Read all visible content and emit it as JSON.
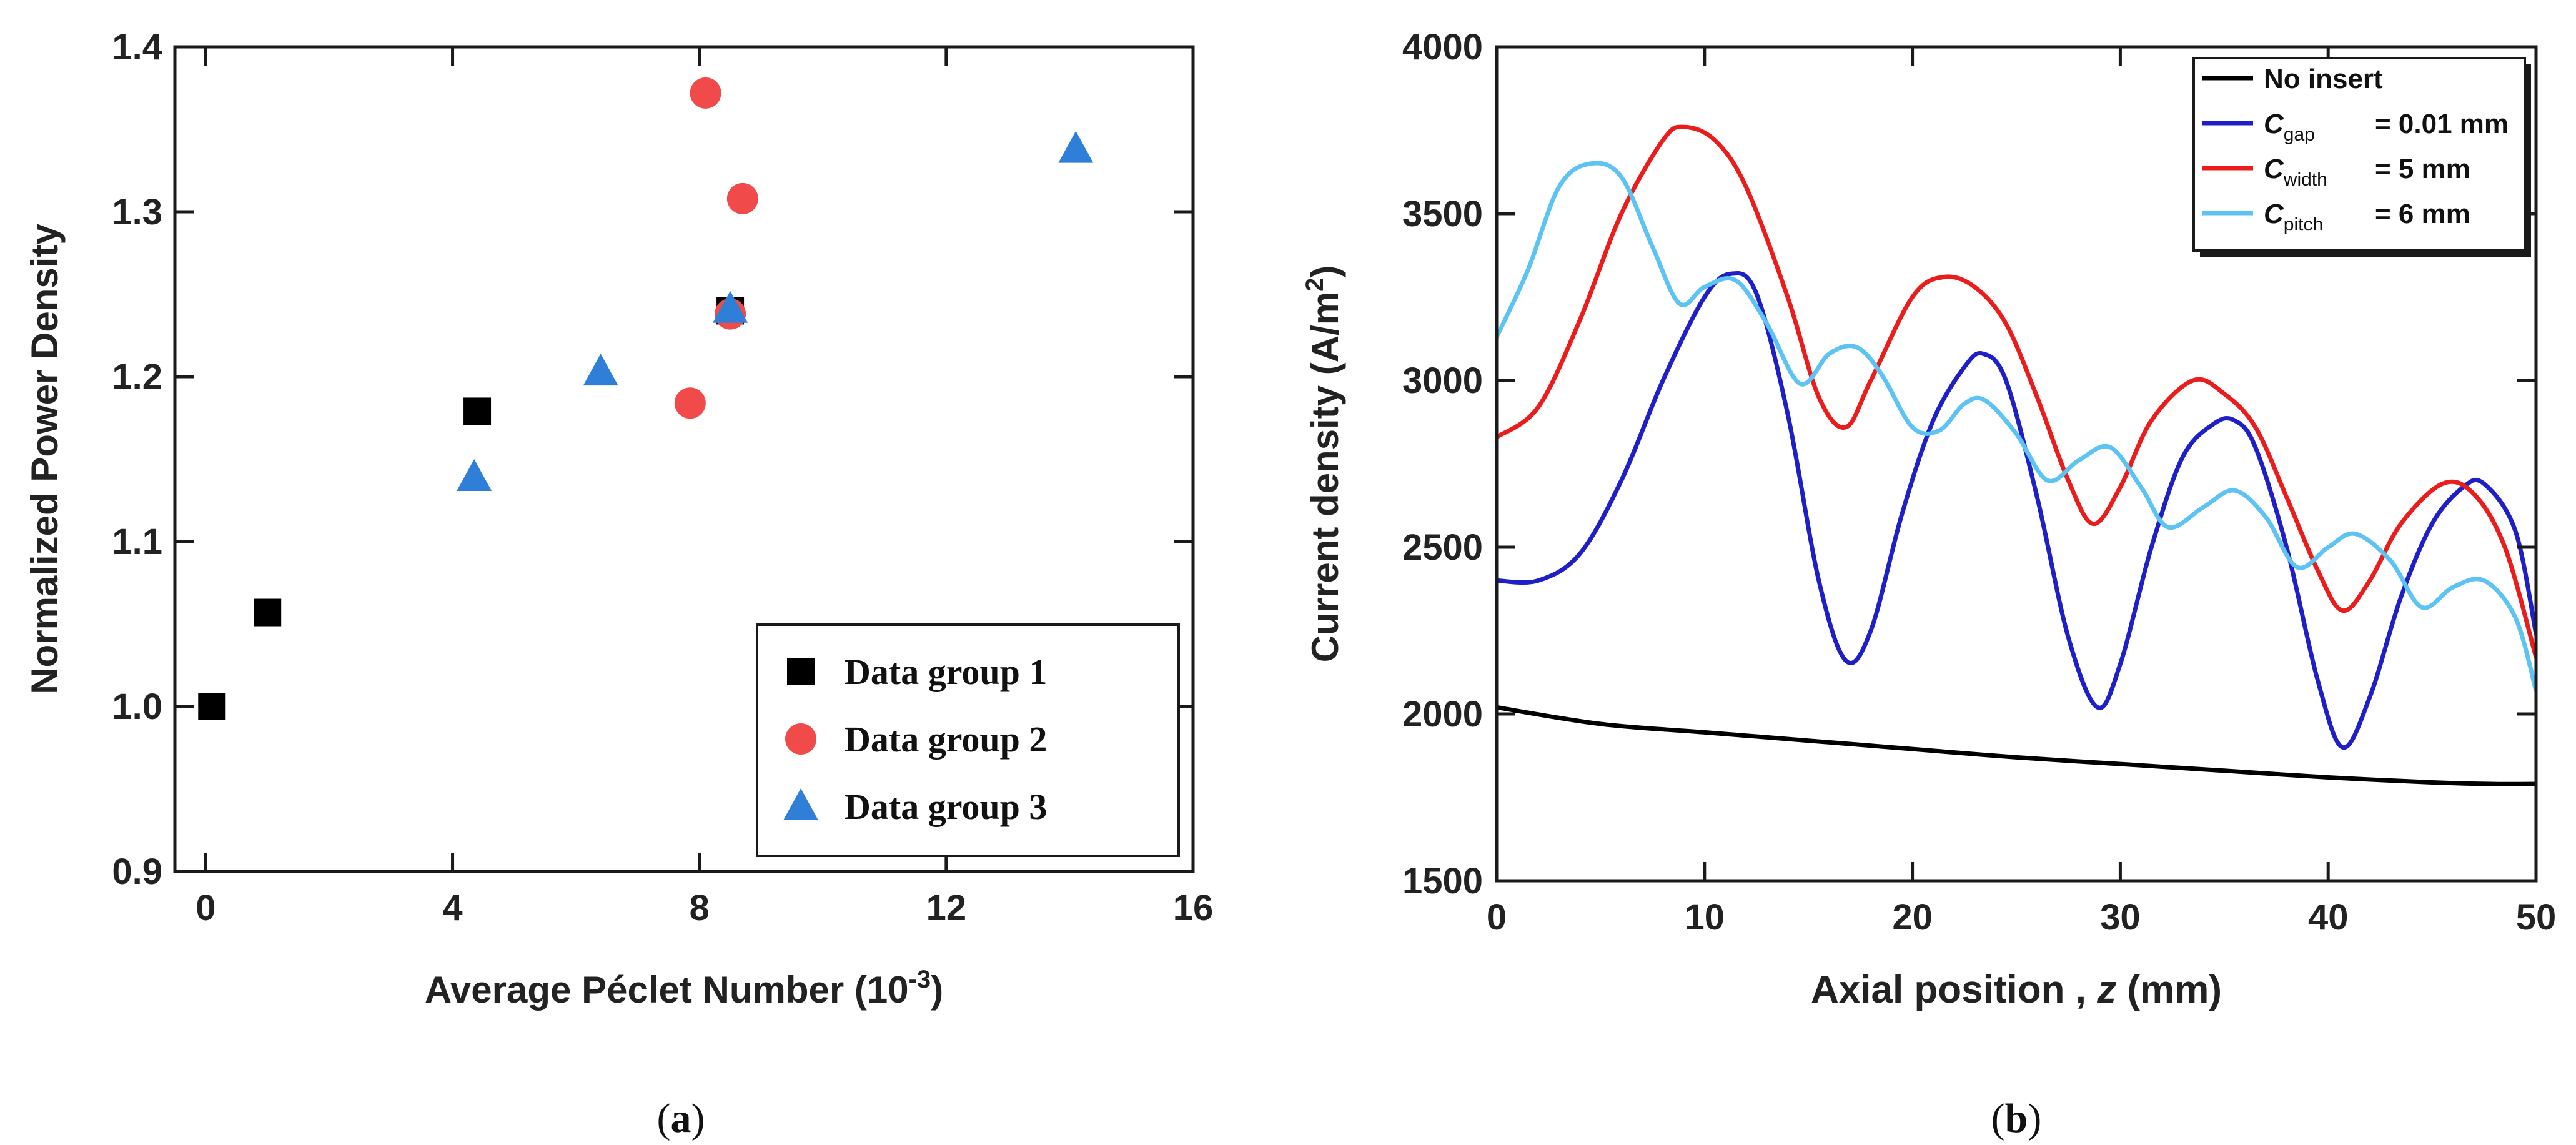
{
  "chart_data": [
    {
      "type": "scatter",
      "panel_label": "(a)",
      "panel_letter": "a",
      "xlabel": "Average Péclet Number (10",
      "xlabel_exponent": "-3",
      "xlabel_close": ")",
      "ylabel": "Normalized Power Density",
      "xlim": [
        -0.5,
        16
      ],
      "ylim": [
        0.9,
        1.4
      ],
      "xticks": [
        0,
        4,
        8,
        12,
        16
      ],
      "yticks": [
        0.9,
        1.0,
        1.1,
        1.2,
        1.3,
        1.4
      ],
      "xtick_labels": [
        "0",
        "4",
        "8",
        "12",
        "16"
      ],
      "ytick_labels": [
        "0.9",
        "1.0",
        "1.1",
        "1.2",
        "1.3",
        "1.4"
      ],
      "legend_position": "bottom-right",
      "series": [
        {
          "name": "Data group 1",
          "marker": "square",
          "color": "#000000",
          "x": [
            0.1,
            1.0,
            4.4,
            8.5
          ],
          "y": [
            1.0,
            1.057,
            1.179,
            1.24
          ]
        },
        {
          "name": "Data group 2",
          "marker": "circle",
          "color": "#f04a4a",
          "x": [
            8.1,
            8.7,
            7.85,
            8.5
          ],
          "y": [
            1.372,
            1.308,
            1.184,
            1.238
          ]
        },
        {
          "name": "Data group 3",
          "marker": "triangle",
          "color": "#2f7fd8",
          "x": [
            14.1,
            8.5,
            6.4,
            4.35
          ],
          "y": [
            1.338,
            1.241,
            1.203,
            1.139
          ]
        }
      ]
    },
    {
      "type": "line",
      "panel_label": "(b)",
      "panel_letter": "b",
      "xlabel": "Axial position , ",
      "xlabel_var": "z",
      "xlabel_unit": " (mm)",
      "ylabel": "Current density (A/m",
      "ylabel_exponent": "2",
      "ylabel_close": ")",
      "xlim": [
        0,
        50
      ],
      "ylim": [
        1500,
        4000
      ],
      "xticks": [
        0,
        10,
        20,
        30,
        40,
        50
      ],
      "yticks": [
        1500,
        2000,
        2500,
        3000,
        3500,
        4000
      ],
      "xtick_labels": [
        "0",
        "10",
        "20",
        "30",
        "40",
        "50"
      ],
      "ytick_labels": [
        "1500",
        "2000",
        "2500",
        "3000",
        "3500",
        "4000"
      ],
      "legend_position": "top-right",
      "series": [
        {
          "name": "No insert",
          "legend_main": "No insert",
          "legend_sub": "",
          "legend_tail": "",
          "color": "#000000",
          "x": [
            0,
            5,
            10,
            15,
            20,
            25,
            30,
            35,
            40,
            45,
            48,
            50
          ],
          "y": [
            2020,
            1970,
            1945,
            1920,
            1895,
            1870,
            1850,
            1830,
            1810,
            1795,
            1790,
            1790
          ]
        },
        {
          "name": "C_gap = 0.01 mm",
          "legend_main": "C",
          "legend_sub": "gap",
          "legend_tail": "= 0.01 mm",
          "color": "#1f1fc8",
          "x": [
            0,
            2,
            4,
            6,
            8,
            10,
            11.3,
            12.5,
            14,
            15.5,
            16.8,
            18,
            19.5,
            21,
            22.5,
            23.4,
            24.5,
            26,
            27.5,
            28.9,
            30,
            31.5,
            33,
            34.5,
            35.5,
            36.5,
            38,
            39.5,
            40.7,
            42,
            43.5,
            45,
            46.5,
            47.5,
            49,
            50
          ],
          "y": [
            2400,
            2400,
            2480,
            2700,
            3000,
            3250,
            3320,
            3260,
            2900,
            2400,
            2160,
            2250,
            2600,
            2880,
            3040,
            3080,
            3000,
            2650,
            2230,
            2020,
            2150,
            2500,
            2770,
            2870,
            2880,
            2800,
            2500,
            2100,
            1900,
            2050,
            2350,
            2570,
            2680,
            2690,
            2550,
            2240
          ]
        },
        {
          "name": "C_width = 5 mm",
          "legend_main": "C",
          "legend_sub": "width",
          "legend_tail": "= 5 mm",
          "color": "#ea1c1c",
          "x": [
            0,
            2,
            4,
            6,
            8,
            9,
            10.5,
            12,
            14,
            15.5,
            16.8,
            18,
            20,
            21.5,
            23,
            24.5,
            26,
            27.5,
            28.7,
            30,
            31.5,
            33.5,
            35,
            36.5,
            38,
            39.5,
            40.7,
            42,
            43.5,
            45.5,
            47,
            48.5,
            50
          ],
          "y": [
            2830,
            2920,
            3180,
            3500,
            3720,
            3760,
            3720,
            3580,
            3250,
            2950,
            2860,
            3000,
            3250,
            3310,
            3280,
            3170,
            2950,
            2700,
            2570,
            2680,
            2880,
            3000,
            2960,
            2860,
            2650,
            2430,
            2310,
            2400,
            2570,
            2690,
            2660,
            2500,
            2170
          ]
        },
        {
          "name": "C_pitch = 6 mm",
          "legend_main": "C",
          "legend_sub": "pitch",
          "legend_tail": "= 6 mm",
          "color": "#5cc3f2",
          "x": [
            0,
            1.5,
            3,
            4.5,
            6,
            7.5,
            8.8,
            10,
            11.5,
            13,
            14.6,
            16,
            17.3,
            18.5,
            20,
            21.3,
            22.5,
            23.5,
            25,
            26.5,
            28,
            29.5,
            31,
            32.3,
            34,
            35.5,
            37,
            38.5,
            40,
            41.3,
            43,
            44.5,
            46,
            47.5,
            49,
            50
          ],
          "y": [
            3130,
            3330,
            3580,
            3650,
            3610,
            3400,
            3230,
            3280,
            3300,
            3170,
            2990,
            3080,
            3100,
            3020,
            2860,
            2850,
            2930,
            2940,
            2840,
            2700,
            2760,
            2800,
            2680,
            2560,
            2620,
            2670,
            2590,
            2440,
            2500,
            2540,
            2460,
            2320,
            2380,
            2400,
            2290,
            2070
          ]
        }
      ]
    }
  ]
}
